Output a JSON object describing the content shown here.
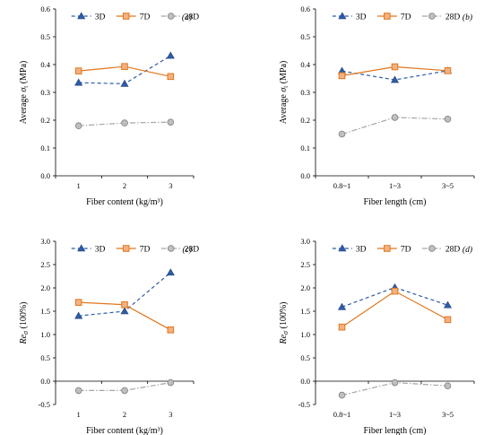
{
  "legend": {
    "labels": [
      "3D",
      "7D",
      "28D"
    ]
  },
  "colors": {
    "3D": "#2E5CA8",
    "7D": "#E0761C",
    "28D": "#A6A6A6",
    "axis": "#000000"
  },
  "markers": {
    "3D": "triangle",
    "7D": "square",
    "28D": "circle"
  },
  "line_styles": {
    "3D": "dashed",
    "7D": "solid",
    "28D": "dash-dot"
  },
  "chart_data": [
    {
      "type": "line",
      "panel": "(a)",
      "xlabel": "Fiber content (kg/m³)",
      "ylabel": "Average σt (MPa)",
      "ylabel_parts": [
        "Average ",
        "σ",
        "t",
        " (MPa)"
      ],
      "categories": [
        "1",
        "2",
        "3"
      ],
      "ylim": [
        0.0,
        0.6
      ],
      "yticks": [
        "0.0",
        "0.1",
        "0.2",
        "0.3",
        "0.4",
        "0.5",
        "0.6"
      ],
      "legend_position": "top",
      "grid": false,
      "series": [
        {
          "name": "3D",
          "values": [
            0.335,
            0.331,
            0.432
          ]
        },
        {
          "name": "7D",
          "values": [
            0.377,
            0.393,
            0.357
          ]
        },
        {
          "name": "28D",
          "values": [
            0.18,
            0.19,
            0.193
          ]
        }
      ]
    },
    {
      "type": "line",
      "panel": "(b)",
      "xlabel": "Fiber length (cm)",
      "ylabel": "Average σt (MPa)",
      "ylabel_parts": [
        "Average ",
        "σ",
        "t",
        " (MPa)"
      ],
      "categories": [
        "0.8~1",
        "1~3",
        "3~5"
      ],
      "ylim": [
        0.0,
        0.6
      ],
      "yticks": [
        "0.0",
        "0.1",
        "0.2",
        "0.3",
        "0.4",
        "0.5",
        "0.6"
      ],
      "legend_position": "top",
      "grid": false,
      "series": [
        {
          "name": "3D",
          "values": [
            0.377,
            0.345,
            0.378
          ]
        },
        {
          "name": "7D",
          "values": [
            0.36,
            0.392,
            0.378
          ]
        },
        {
          "name": "28D",
          "values": [
            0.15,
            0.21,
            0.204
          ]
        }
      ]
    },
    {
      "type": "line",
      "panel": "(c)",
      "xlabel": "Fiber content (kg/m³)",
      "ylabel": "Reσ (100%)",
      "ylabel_parts": [
        "Re",
        "σ",
        "",
        " (100%)"
      ],
      "categories": [
        "1",
        "2",
        "3"
      ],
      "ylim": [
        -0.5,
        3.0
      ],
      "yticks": [
        "-0.5",
        "0.0",
        "0.5",
        "1.0",
        "1.5",
        "2.0",
        "2.5",
        "3.0"
      ],
      "legend_position": "top",
      "grid": false,
      "series": [
        {
          "name": "3D",
          "values": [
            1.4,
            1.5,
            2.33
          ]
        },
        {
          "name": "7D",
          "values": [
            1.69,
            1.64,
            1.1
          ]
        },
        {
          "name": "28D",
          "values": [
            -0.2,
            -0.2,
            -0.03
          ]
        }
      ]
    },
    {
      "type": "line",
      "panel": "(d)",
      "xlabel": "Fiber length (cm)",
      "ylabel": "Reσ (100%)",
      "ylabel_parts": [
        "Re",
        "σ",
        "",
        " (100%)"
      ],
      "categories": [
        "0.8~1",
        "1~3",
        "3~5"
      ],
      "ylim": [
        -0.5,
        3.0
      ],
      "yticks": [
        "-0.5",
        "0.0",
        "0.5",
        "1.0",
        "1.5",
        "2.0",
        "2.5",
        "3.0"
      ],
      "legend_position": "top",
      "grid": false,
      "series": [
        {
          "name": "3D",
          "values": [
            1.59,
            2.01,
            1.63
          ]
        },
        {
          "name": "7D",
          "values": [
            1.16,
            1.93,
            1.32
          ]
        },
        {
          "name": "28D",
          "values": [
            -0.3,
            -0.03,
            -0.1
          ]
        }
      ]
    }
  ]
}
